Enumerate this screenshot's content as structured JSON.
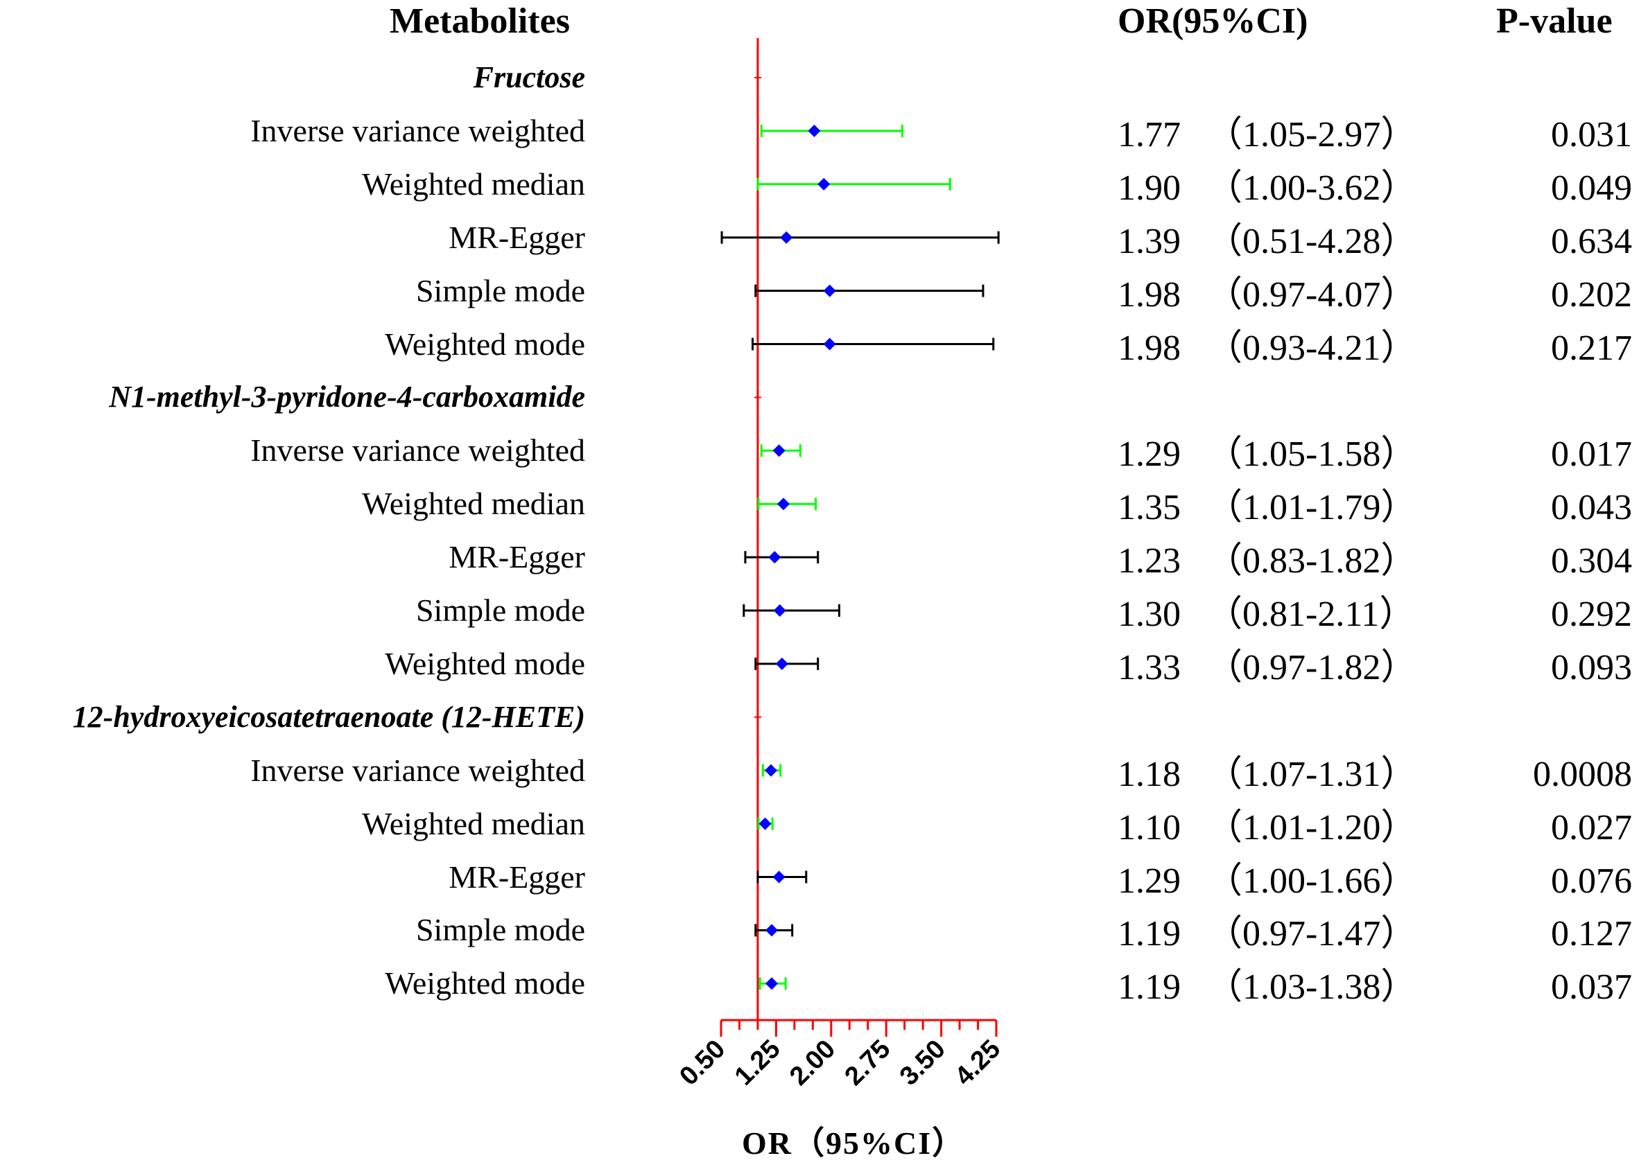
{
  "headers": {
    "metabolites": "Metabolites",
    "or_ci": "OR(95%CI)",
    "p_value": "P-value"
  },
  "colors": {
    "reference_line": "#ff0000",
    "significant_ci": "#00ff00",
    "nonsignificant_ci": "#000000",
    "point": "#0000ff"
  },
  "chart_data": {
    "type": "forest",
    "reference_value": 1.0,
    "xlim": [
      0.5,
      4.25
    ],
    "x_ticks": [
      "0.50",
      "1.25",
      "2.00",
      "2.75",
      "3.50",
      "4.25"
    ],
    "xlabel": "OR（95%CI）",
    "rows": [
      {
        "kind": "group",
        "label": "Fructose"
      },
      {
        "kind": "method",
        "label": "Inverse variance weighted",
        "or": 1.77,
        "lo": 1.05,
        "hi": 2.97,
        "or_text": "1.77",
        "ci_text": "（1.05-2.97）",
        "p_text": "0.031",
        "significant": true
      },
      {
        "kind": "method",
        "label": "Weighted median",
        "or": 1.9,
        "lo": 1.0,
        "hi": 3.62,
        "or_text": "1.90",
        "ci_text": "（1.00-3.62）",
        "p_text": "0.049",
        "significant": true
      },
      {
        "kind": "method",
        "label": "MR-Egger",
        "or": 1.39,
        "lo": 0.51,
        "hi": 4.28,
        "or_text": "1.39",
        "ci_text": "（0.51-4.28）",
        "p_text": "0.634",
        "significant": false
      },
      {
        "kind": "method",
        "label": "Simple mode",
        "or": 1.98,
        "lo": 0.97,
        "hi": 4.07,
        "or_text": "1.98",
        "ci_text": "（0.97-4.07）",
        "p_text": "0.202",
        "significant": false
      },
      {
        "kind": "method",
        "label": "Weighted mode",
        "or": 1.98,
        "lo": 0.93,
        "hi": 4.21,
        "or_text": "1.98",
        "ci_text": "（0.93-4.21）",
        "p_text": "0.217",
        "significant": false
      },
      {
        "kind": "group",
        "label": "N1-methyl-3-pyridone-4-carboxamide"
      },
      {
        "kind": "method",
        "label": "Inverse variance weighted",
        "or": 1.29,
        "lo": 1.05,
        "hi": 1.58,
        "or_text": "1.29",
        "ci_text": "（1.05-1.58）",
        "p_text": "0.017",
        "significant": true
      },
      {
        "kind": "method",
        "label": "Weighted median",
        "or": 1.35,
        "lo": 1.01,
        "hi": 1.79,
        "or_text": "1.35",
        "ci_text": "（1.01-1.79）",
        "p_text": "0.043",
        "significant": true
      },
      {
        "kind": "method",
        "label": "MR-Egger",
        "or": 1.23,
        "lo": 0.83,
        "hi": 1.82,
        "or_text": "1.23",
        "ci_text": "（0.83-1.82）",
        "p_text": "0.304",
        "significant": false
      },
      {
        "kind": "method",
        "label": "Simple mode",
        "or": 1.3,
        "lo": 0.81,
        "hi": 2.11,
        "or_text": "1.30",
        "ci_text": "（0.81-2.11）",
        "p_text": "0.292",
        "significant": false
      },
      {
        "kind": "method",
        "label": "Weighted mode",
        "or": 1.33,
        "lo": 0.97,
        "hi": 1.82,
        "or_text": "1.33",
        "ci_text": "（0.97-1.82）",
        "p_text": "0.093",
        "significant": false
      },
      {
        "kind": "group",
        "label": "12-hydroxyeicosatetraenoate (12-HETE)"
      },
      {
        "kind": "method",
        "label": "Inverse variance weighted",
        "or": 1.18,
        "lo": 1.07,
        "hi": 1.31,
        "or_text": "1.18",
        "ci_text": "（1.07-1.31）",
        "p_text": "0.0008",
        "significant": true
      },
      {
        "kind": "method",
        "label": "Weighted median",
        "or": 1.1,
        "lo": 1.01,
        "hi": 1.2,
        "or_text": "1.10",
        "ci_text": "（1.01-1.20）",
        "p_text": "0.027",
        "significant": true
      },
      {
        "kind": "method",
        "label": "MR-Egger",
        "or": 1.29,
        "lo": 1.0,
        "hi": 1.66,
        "or_text": "1.29",
        "ci_text": "（1.00-1.66）",
        "p_text": "0.076",
        "significant": false
      },
      {
        "kind": "method",
        "label": "Simple mode",
        "or": 1.19,
        "lo": 0.97,
        "hi": 1.47,
        "or_text": "1.19",
        "ci_text": "（0.97-1.47）",
        "p_text": "0.127",
        "significant": false
      },
      {
        "kind": "method",
        "label": "Weighted mode",
        "or": 1.19,
        "lo": 1.03,
        "hi": 1.38,
        "or_text": "1.19",
        "ci_text": "（1.03-1.38）",
        "p_text": "0.037",
        "significant": true
      }
    ]
  }
}
